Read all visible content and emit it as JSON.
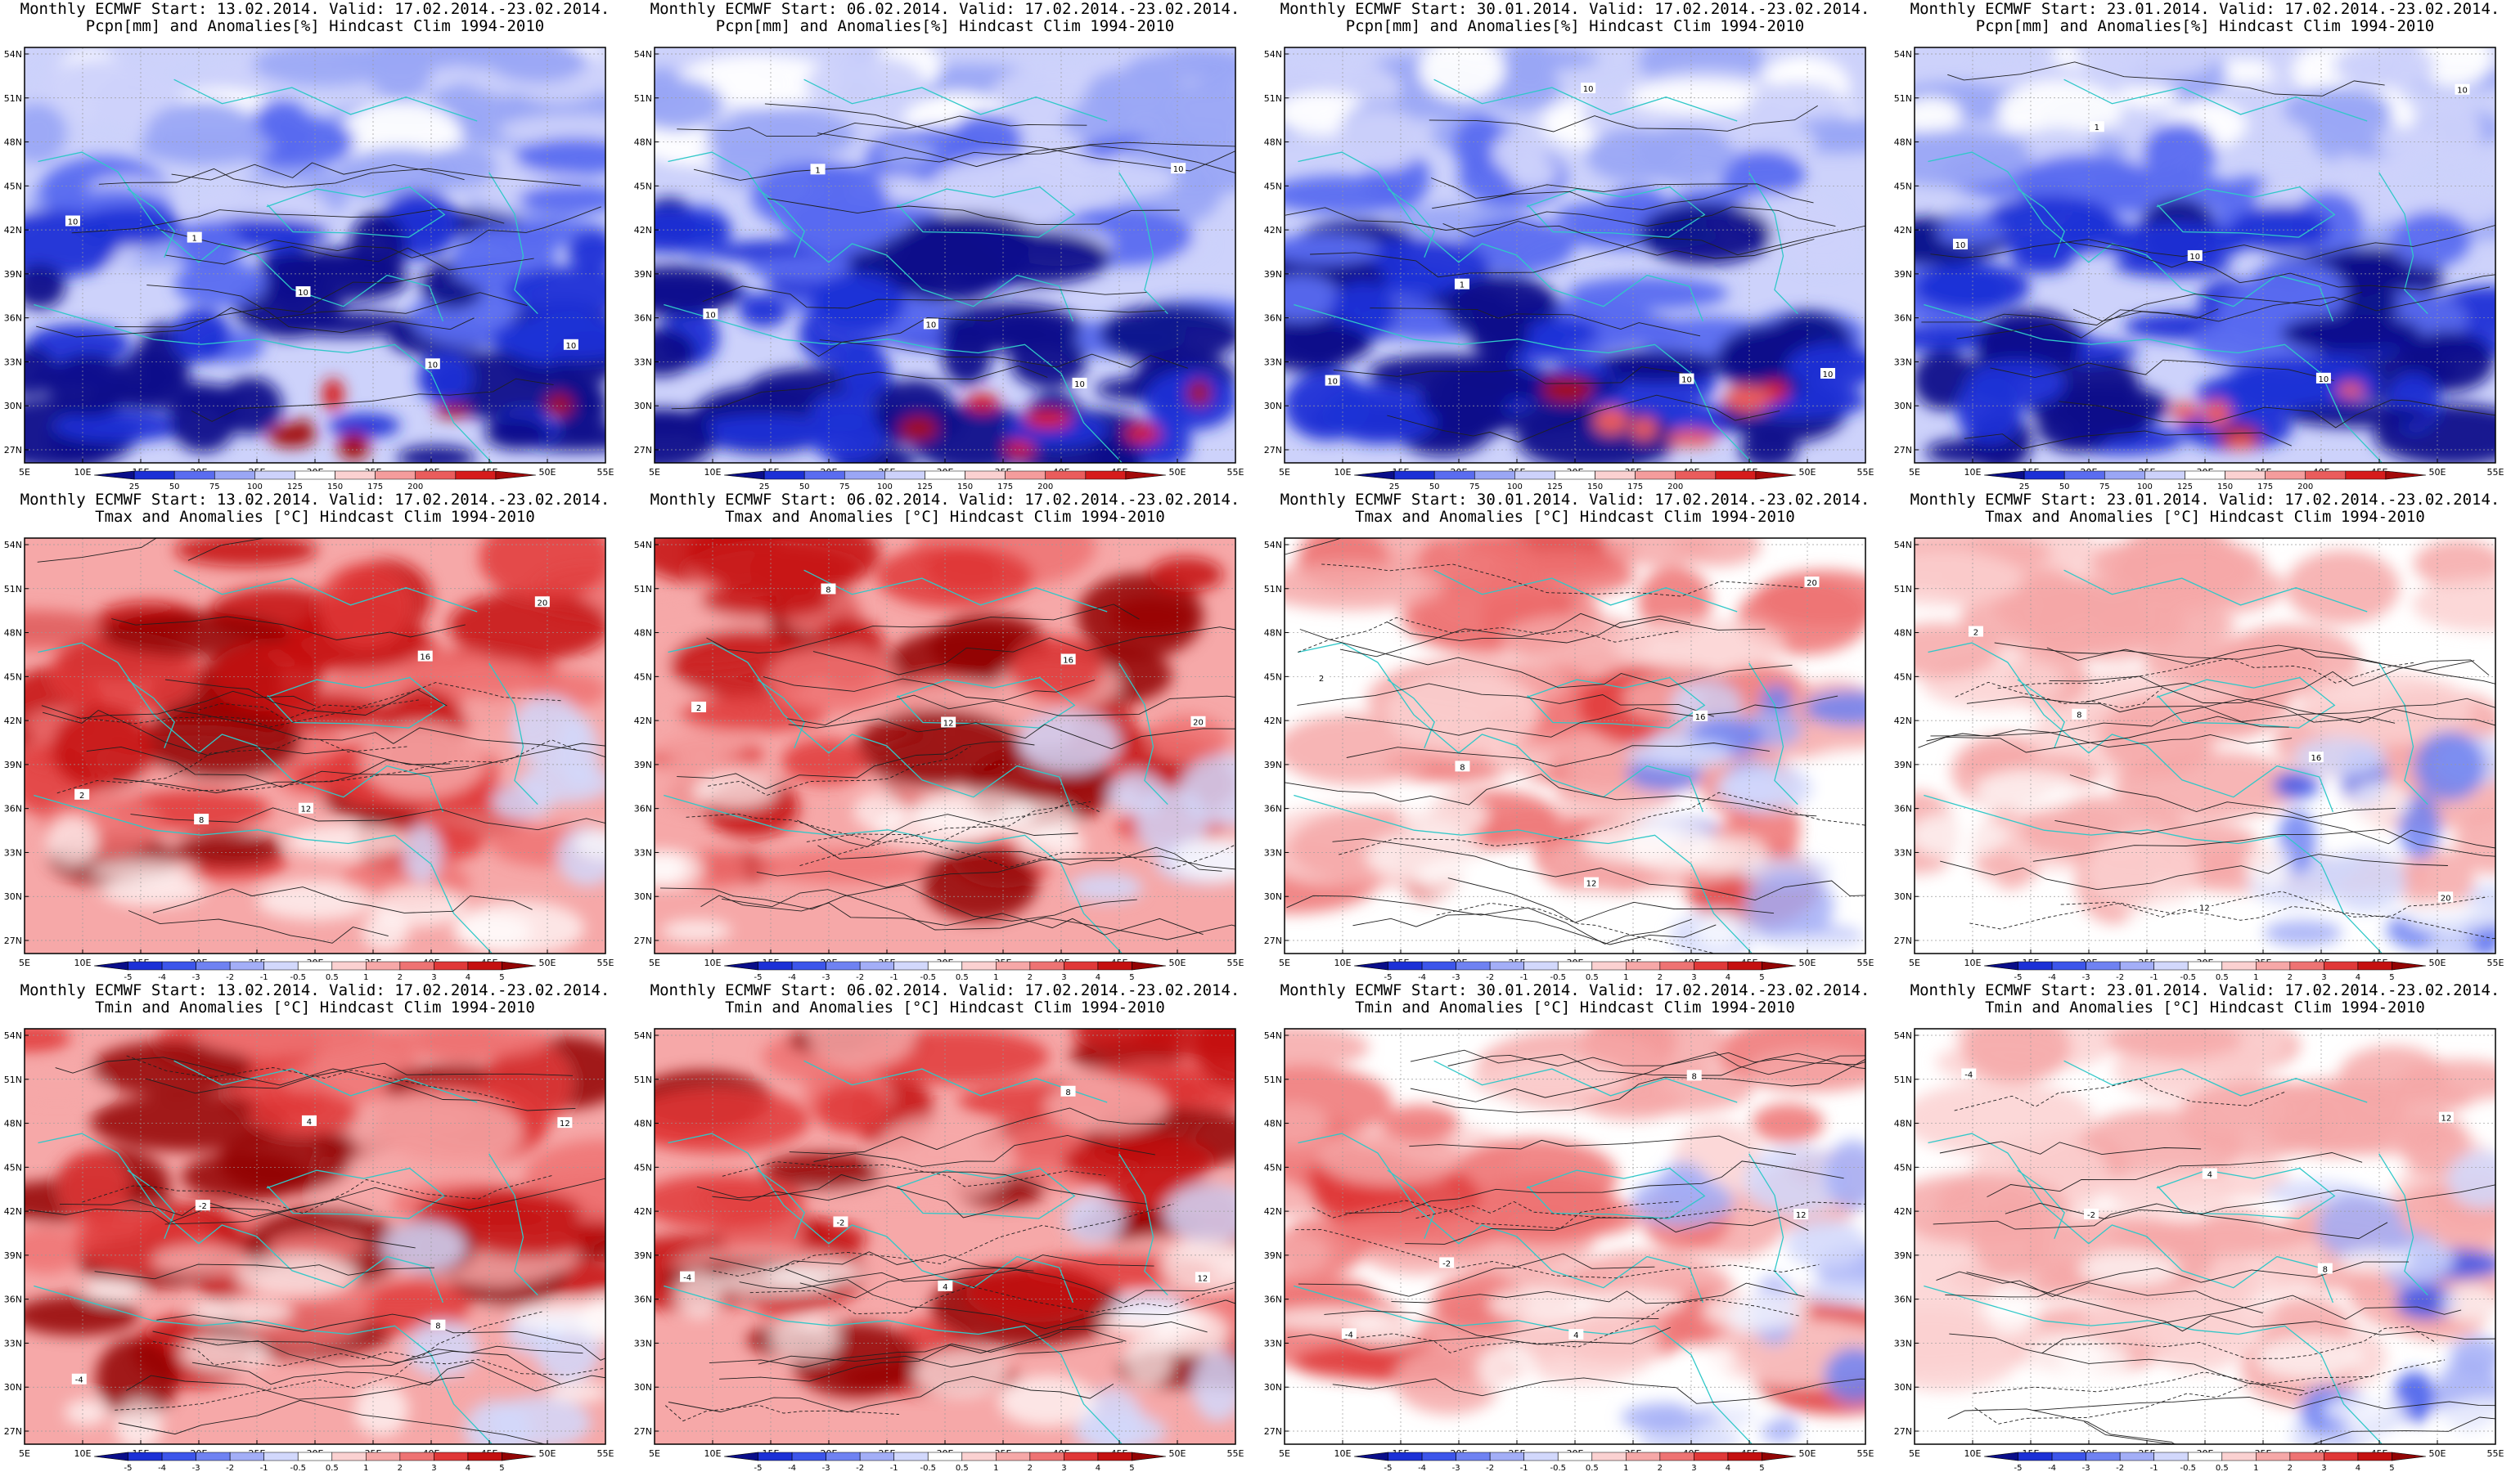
{
  "rows": [
    {
      "variable_title": "Pcpn[mm] and Anomalies[%] Hindcast Clim 1994-2010",
      "kind": "precip",
      "colorbar": {
        "labels": [
          "25",
          "50",
          "75",
          "100",
          "125",
          "150",
          "175",
          "200"
        ],
        "colors": [
          "#0a0e8a",
          "#1c30d6",
          "#5a6cf0",
          "#9aa6f5",
          "#cdd2fb",
          "#ffffff",
          "#fbd1d1",
          "#f49c9c",
          "#ea5c5c",
          "#d61c1c",
          "#a30a0a"
        ]
      },
      "contour_labels": [
        "10",
        "1",
        "10",
        "10",
        "10"
      ]
    },
    {
      "variable_title": "Tmax and Anomalies [°C] Hindcast Clim 1994-2010",
      "kind": "temp",
      "colorbar": {
        "labels": [
          "-5",
          "-4",
          "-3",
          "-2",
          "-1",
          "-0.5",
          "0.5",
          "1",
          "2",
          "3",
          "4",
          "5"
        ],
        "colors": [
          "#0a0e8a",
          "#1c30d6",
          "#3c55ea",
          "#6f82f2",
          "#a3aef7",
          "#d2d8fc",
          "#ffffff",
          "#fbd1d1",
          "#f6a8a8",
          "#ee7373",
          "#e03838",
          "#c41010",
          "#920404"
        ]
      },
      "contour_labels": [
        "2",
        "8",
        "12",
        "16",
        "20"
      ]
    },
    {
      "variable_title": "Tmin and Anomalies [°C] Hindcast Clim 1994-2010",
      "kind": "temp",
      "colorbar": {
        "labels": [
          "-5",
          "-4",
          "-3",
          "-2",
          "-1",
          "-0.5",
          "0.5",
          "1",
          "2",
          "3",
          "4",
          "5"
        ],
        "colors": [
          "#0a0e8a",
          "#1c30d6",
          "#3c55ea",
          "#6f82f2",
          "#a3aef7",
          "#d2d8fc",
          "#ffffff",
          "#fbd1d1",
          "#f6a8a8",
          "#ee7373",
          "#e03838",
          "#c41010",
          "#920404"
        ]
      },
      "contour_labels": [
        "-4",
        "-2",
        "4",
        "8",
        "12"
      ]
    }
  ],
  "columns": [
    {
      "start": "13.02.2014",
      "intensity": 1.0
    },
    {
      "start": "06.02.2014",
      "intensity": 0.9
    },
    {
      "start": "30.01.2014",
      "intensity": 0.5
    },
    {
      "start": "23.01.2014",
      "intensity": 0.3
    }
  ],
  "title_prefix": "Monthly ECMWF Start: ",
  "valid_text": ". Valid: 17.02.2014.-23.02.2014.",
  "lat_labels": [
    "54N",
    "51N",
    "48N",
    "45N",
    "42N",
    "39N",
    "36N",
    "33N",
    "30N",
    "27N"
  ],
  "lon_labels": [
    "5E",
    "10E",
    "15E",
    "20E",
    "25E",
    "30E",
    "35E",
    "40E",
    "45E",
    "50E",
    "55E"
  ]
}
